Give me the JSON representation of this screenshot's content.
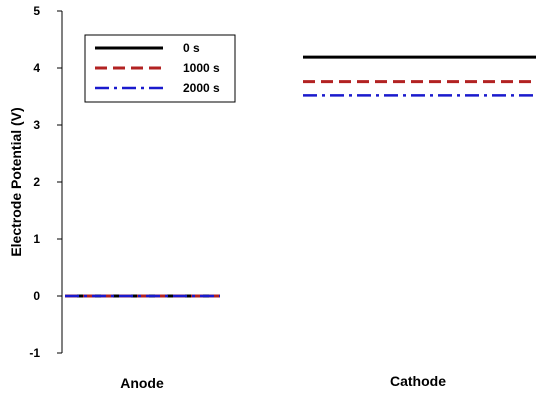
{
  "chart_data": {
    "type": "line",
    "ylabel": "Electrode Potential (V)",
    "ylim": [
      -1,
      5
    ],
    "yticks": [
      -1,
      0,
      1,
      2,
      3,
      4,
      5
    ],
    "categories": [
      "Anode",
      "Cathode"
    ],
    "legend_position": "top-left",
    "grid": false,
    "series": [
      {
        "name": "0 s",
        "values": [
          0,
          4.19
        ],
        "color": "#000000",
        "style": "solid"
      },
      {
        "name": "1000 s",
        "values": [
          0,
          3.76
        ],
        "color": "#b22222",
        "style": "dashed"
      },
      {
        "name": "2000 s",
        "values": [
          0,
          3.52
        ],
        "color": "#1a1acd",
        "style": "dashdot"
      }
    ]
  }
}
